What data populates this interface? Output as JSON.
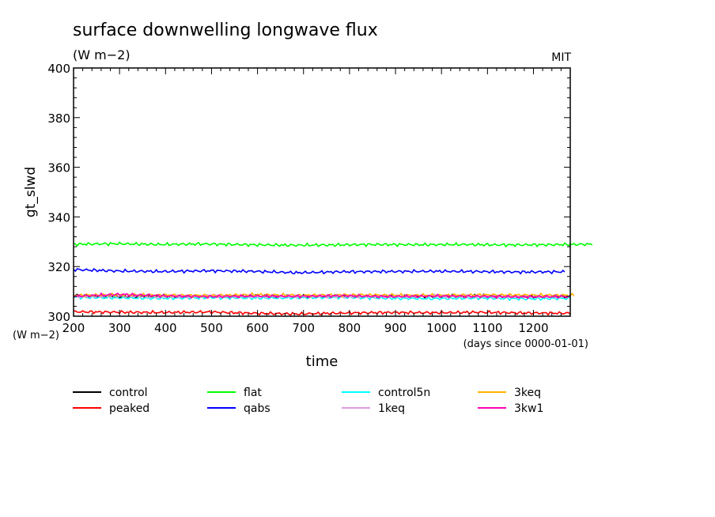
{
  "chart_data": {
    "type": "line",
    "title": "surface downwelling longwave flux",
    "units": "(W m−2)",
    "source": "MIT",
    "xlabel": "time",
    "x_units": "(days since 0000-01-01)",
    "ylabel": "gt_slwd",
    "y_units": "(W m−2)",
    "xlim": [
      200,
      1280
    ],
    "ylim": [
      300,
      400
    ],
    "x_ticks": [
      "200",
      "300",
      "400",
      "500",
      "600",
      "700",
      "800",
      "900",
      "1000",
      "1100",
      "1200"
    ],
    "y_ticks": [
      "300",
      "320",
      "340",
      "360",
      "380",
      "400"
    ],
    "grid": false,
    "legend_position": "bottom",
    "series": [
      {
        "name": "control",
        "color": "#000000",
        "x_range": [
          200,
          1280
        ],
        "values": [
          308.3,
          307.9,
          308.1,
          307.8,
          308.2,
          308.0,
          307.9,
          308.1,
          308.0,
          308.2,
          307.9,
          308.0
        ]
      },
      {
        "name": "peaked",
        "color": "#ff0000",
        "x_range": [
          200,
          1280
        ],
        "values": [
          301.8,
          301.6,
          301.5,
          301.7,
          301.2,
          300.9,
          301.3,
          301.5,
          301.4,
          301.6,
          301.3,
          301.2
        ]
      },
      {
        "name": "flat",
        "color": "#00ff00",
        "x_range": [
          200,
          1330
        ],
        "values": [
          329.0,
          329.2,
          328.9,
          329.1,
          328.8,
          328.6,
          328.7,
          328.9,
          328.8,
          328.9,
          328.7,
          328.8,
          329.0
        ]
      },
      {
        "name": "qabs",
        "color": "#0000ff",
        "x_range": [
          200,
          1270
        ],
        "values": [
          318.8,
          318.2,
          318.0,
          318.3,
          318.1,
          317.5,
          317.9,
          318.0,
          318.1,
          318.0,
          317.8,
          317.9
        ]
      },
      {
        "name": "control5n",
        "color": "#00ffff",
        "x_range": [
          200,
          1280
        ],
        "values": [
          307.6,
          307.4,
          307.2,
          307.5,
          307.3,
          307.4,
          307.6,
          307.2,
          307.1,
          307.3,
          307.0,
          307.2
        ]
      },
      {
        "name": "1keq",
        "color": "#e09ae0",
        "x_range": [
          200,
          1280
        ],
        "values": [
          308.0,
          308.1,
          307.9,
          308.2,
          308.0,
          308.1,
          307.9,
          308.0,
          308.2,
          308.0,
          307.9,
          308.1
        ]
      },
      {
        "name": "3keq",
        "color": "#ffb400",
        "x_range": [
          200,
          1290
        ],
        "values": [
          308.4,
          308.6,
          308.5,
          308.3,
          308.7,
          308.4,
          308.6,
          308.5,
          308.4,
          308.6,
          308.5,
          308.4
        ]
      },
      {
        "name": "3kw1",
        "color": "#ff00b4",
        "x_range": [
          200,
          1280
        ],
        "values": [
          308.0,
          308.8,
          308.2,
          307.9,
          308.1,
          308.0,
          308.3,
          307.9,
          308.1,
          308.0,
          307.8,
          307.9
        ]
      }
    ]
  }
}
